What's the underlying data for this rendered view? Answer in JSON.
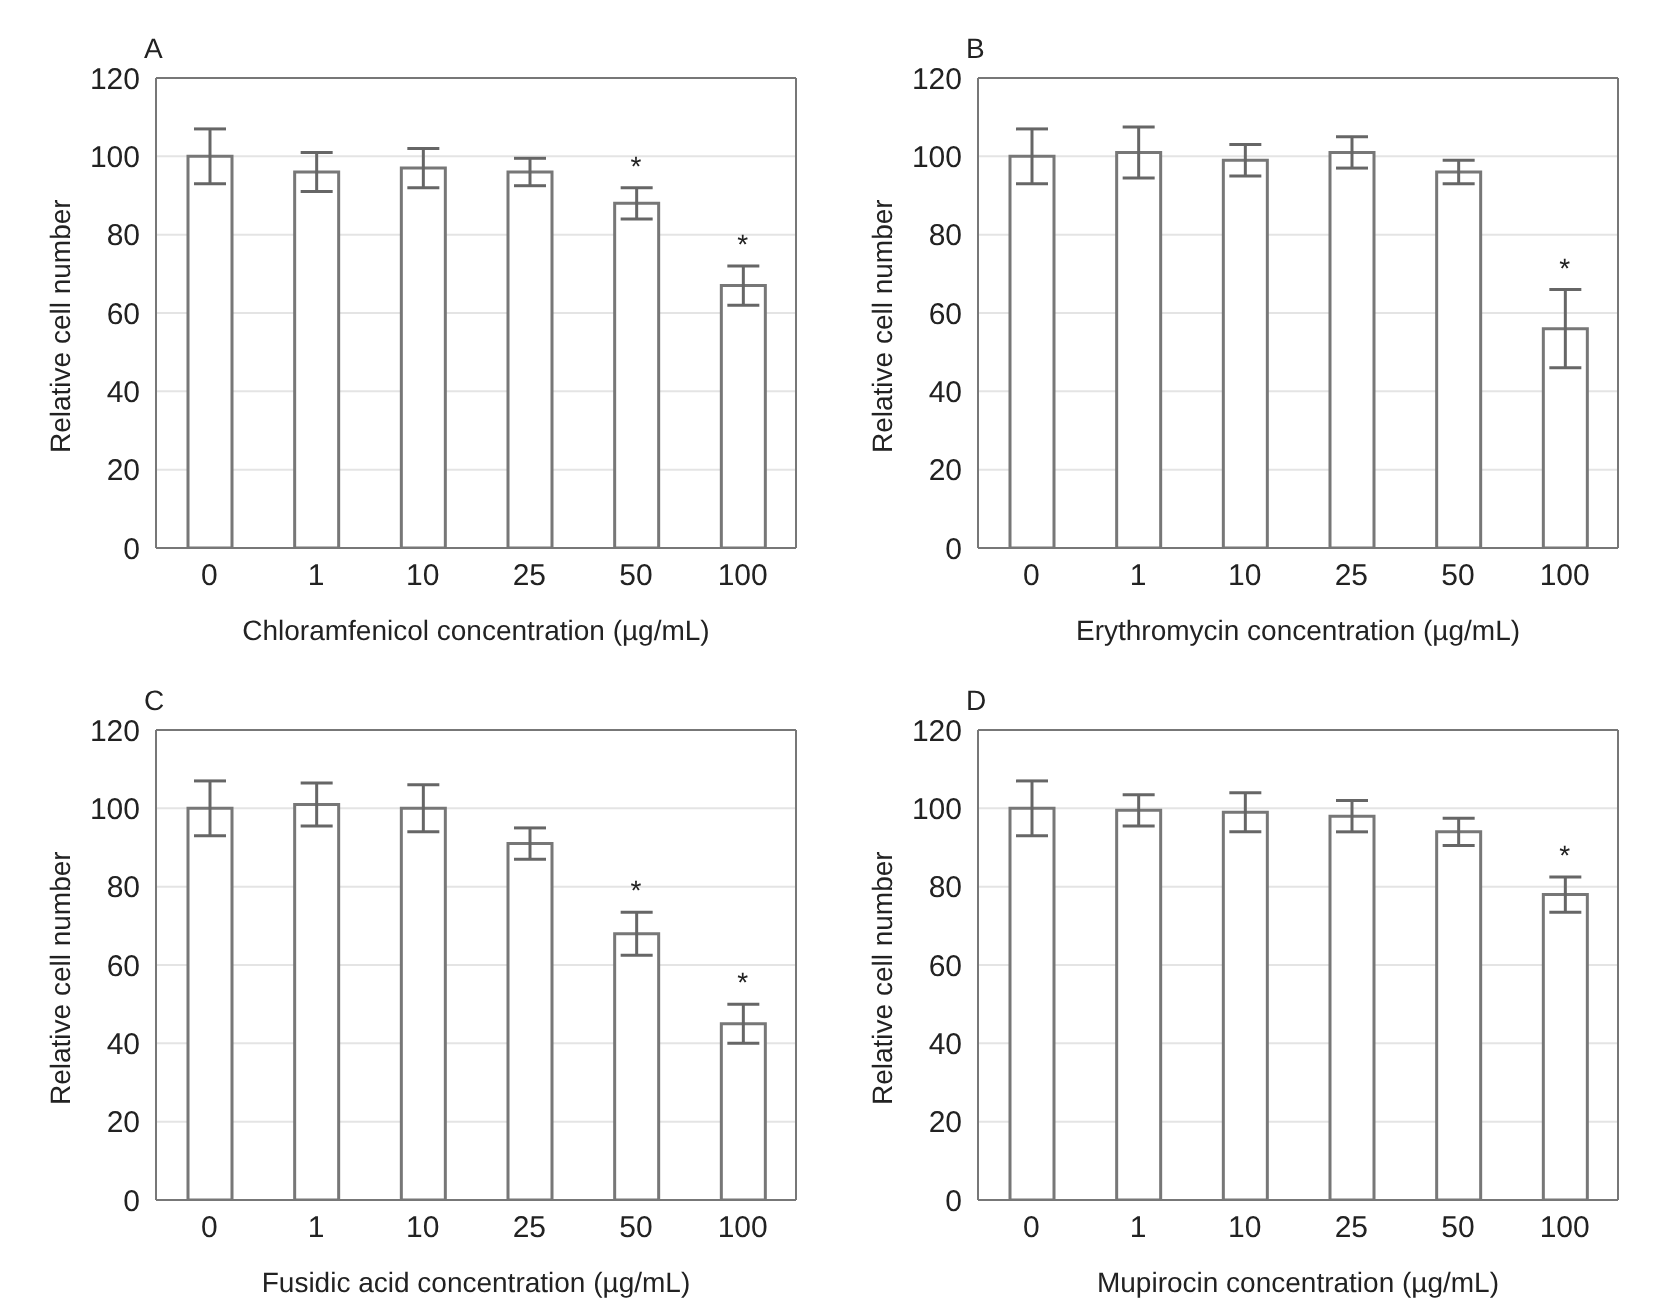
{
  "chart_data": [
    {
      "type": "bar",
      "title": "A",
      "xlabel": "Chloramfenicol concentration (µg/mL)",
      "ylabel": "Relative cell number",
      "categories": [
        "0",
        "1",
        "10",
        "25",
        "50",
        "100"
      ],
      "values": [
        100,
        96,
        97,
        96,
        88,
        67
      ],
      "errors": [
        7,
        5,
        5,
        3.5,
        4,
        5
      ],
      "color": "#ffffff",
      "ylim": [
        0,
        120
      ],
      "yticks": [
        0,
        20,
        40,
        60,
        80,
        100,
        120
      ],
      "grid": "y",
      "annotations": [
        {
          "text": "*",
          "x": "50",
          "y": 88
        },
        {
          "text": "*",
          "x": "100",
          "y": 67
        }
      ]
    },
    {
      "type": "bar",
      "title": "B",
      "xlabel": "Erythromycin concentration (µg/mL)",
      "ylabel": "Relative cell number",
      "categories": [
        "0",
        "1",
        "10",
        "25",
        "50",
        "100"
      ],
      "values": [
        100,
        101,
        99,
        101,
        96,
        56
      ],
      "errors": [
        7,
        6.5,
        4,
        4,
        3,
        10
      ],
      "color": "#ffffff",
      "ylim": [
        0,
        120
      ],
      "yticks": [
        0,
        20,
        40,
        60,
        80,
        100,
        120
      ],
      "grid": "y",
      "annotations": [
        {
          "text": "*",
          "x": "100",
          "y": 56
        }
      ]
    },
    {
      "type": "bar",
      "title": "C",
      "xlabel": "Fusidic acid concentration (µg/mL)",
      "ylabel": "Relative cell number",
      "categories": [
        "0",
        "1",
        "10",
        "25",
        "50",
        "100"
      ],
      "values": [
        100,
        101,
        100,
        91,
        68,
        45
      ],
      "errors": [
        7,
        5.5,
        6,
        4,
        5.5,
        5
      ],
      "color": "#ffffff",
      "ylim": [
        0,
        120
      ],
      "yticks": [
        0,
        20,
        40,
        60,
        80,
        100,
        120
      ],
      "grid": "y",
      "annotations": [
        {
          "text": "*",
          "x": "50",
          "y": 68
        },
        {
          "text": "*",
          "x": "100",
          "y": 45
        }
      ]
    },
    {
      "type": "bar",
      "title": "D",
      "xlabel": "Mupirocin concentration (µg/mL)",
      "ylabel": "Relative cell number",
      "categories": [
        "0",
        "1",
        "10",
        "25",
        "50",
        "100"
      ],
      "values": [
        100,
        99.5,
        99,
        98,
        94,
        78
      ],
      "errors": [
        7,
        4,
        5,
        4,
        3.5,
        4.5
      ],
      "color": "#ffffff",
      "ylim": [
        0,
        120
      ],
      "yticks": [
        0,
        20,
        40,
        60,
        80,
        100,
        120
      ],
      "grid": "y",
      "annotations": [
        {
          "text": "*",
          "x": "100",
          "y": 78
        }
      ]
    }
  ]
}
